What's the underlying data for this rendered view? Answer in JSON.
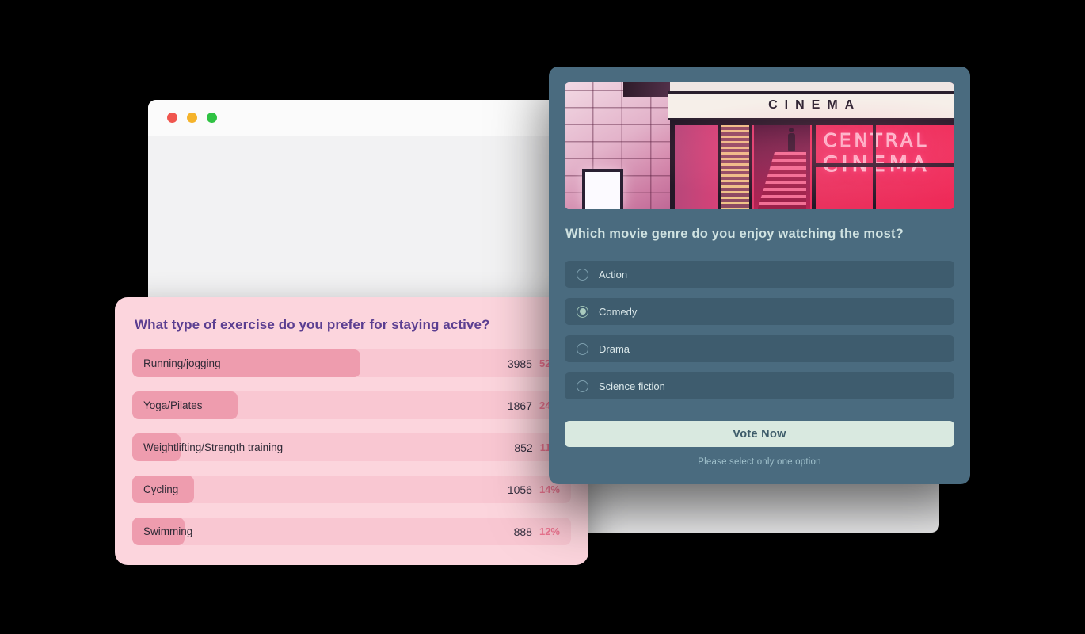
{
  "colors": {
    "page_bg": "#000000",
    "window_bar": "#fbfbfb",
    "window_body": "#f2f2f3",
    "pink_card": "#fcd5dd",
    "pink_track": "#f9c7d2",
    "pink_fill": "#ee9cae",
    "pink_title": "#5b3e91",
    "pink_percent": "#ee7591",
    "teal_card": "#4a6b7f",
    "teal_row": "#3e5c6e",
    "teal_question": "#cfe2e1",
    "teal_label": "#dbe8ea",
    "button_bg": "#d9e9e0",
    "button_text": "#3e5c6a",
    "footnote": "#9fc0cb",
    "traffic_red": "#f0564f",
    "traffic_yellow": "#f5b32b",
    "traffic_green": "#2fc243"
  },
  "exercise_poll": {
    "title": "What type of exercise do you prefer for staying active?",
    "options": [
      {
        "label": "Running/jogging",
        "votes": "3985",
        "percent": "52%",
        "fill": 52
      },
      {
        "label": "Yoga/Pilates",
        "votes": "1867",
        "percent": "24%",
        "fill": 24
      },
      {
        "label": "Weightlifting/Strength training",
        "votes": "852",
        "percent": "11%",
        "fill": 11
      },
      {
        "label": "Cycling",
        "votes": "1056",
        "percent": "14%",
        "fill": 14
      },
      {
        "label": "Swimming",
        "votes": "888",
        "percent": "12%",
        "fill": 12
      }
    ]
  },
  "movie_poll": {
    "question": "Which movie genre do you enjoy watching the most?",
    "options": [
      {
        "label": "Action",
        "selected": false
      },
      {
        "label": "Comedy",
        "selected": true
      },
      {
        "label": "Drama",
        "selected": false
      },
      {
        "label": "Science fiction",
        "selected": false
      }
    ],
    "vote_button": "Vote Now",
    "footnote": "Please select only one option",
    "image": {
      "marquee_text": "CINEMA",
      "neon_line1": "CENTRAL",
      "neon_line2": "CINEMA"
    }
  },
  "chart_data": {
    "type": "bar",
    "title": "What type of exercise do you prefer for staying active?",
    "categories": [
      "Running/jogging",
      "Yoga/Pilates",
      "Weightlifting/Strength training",
      "Cycling",
      "Swimming"
    ],
    "series": [
      {
        "name": "votes",
        "values": [
          3985,
          1867,
          852,
          1056,
          888
        ]
      },
      {
        "name": "percent",
        "values": [
          52,
          24,
          11,
          14,
          12
        ]
      }
    ],
    "xlabel": "",
    "ylabel": "votes",
    "orientation": "horizontal",
    "grid": false,
    "legend_position": "none"
  }
}
